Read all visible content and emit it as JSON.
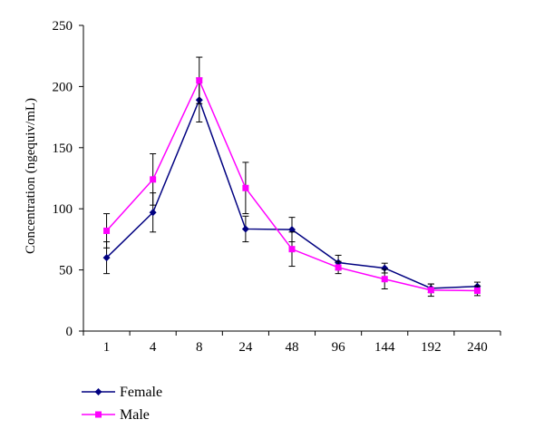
{
  "chart_data": {
    "type": "line",
    "categories": [
      "1",
      "4",
      "8",
      "24",
      "48",
      "96",
      "144",
      "192",
      "240"
    ],
    "ylabel": "Concentration (ngequiv/mL)",
    "xlabel": "",
    "ylim": [
      0,
      250
    ],
    "yticks": [
      "0",
      "50",
      "100",
      "150",
      "200",
      "250"
    ],
    "grid": false,
    "legend_position": "bottom-left",
    "series": [
      {
        "name": "Female",
        "color": "#000080",
        "marker": "diamond",
        "values": [
          60,
          97,
          189,
          83.5,
          83,
          56,
          51.5,
          35,
          36.5
        ],
        "errors": [
          13,
          16,
          18,
          10.5,
          10,
          6,
          4,
          3.5,
          3.5
        ]
      },
      {
        "name": "Male",
        "color": "#ff00ff",
        "marker": "square",
        "values": [
          82,
          124,
          205,
          117,
          67,
          52,
          42.5,
          33.5,
          33
        ],
        "errors": [
          14,
          21,
          19,
          21,
          14,
          5,
          8,
          5,
          4
        ]
      }
    ]
  }
}
